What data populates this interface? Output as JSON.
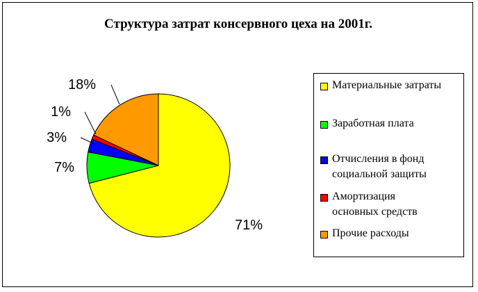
{
  "chart_data": {
    "type": "pie",
    "title": "Структура затрат консервного цеха на 2001г.",
    "categories": [
      "Материальные затраты",
      "Заработная плата",
      "Отчисления в фонд социальной защиты",
      "Амортизация основных средств",
      "Прочие расходы"
    ],
    "values": [
      71,
      7,
      3,
      1,
      18
    ],
    "labels": [
      "71%",
      "7%",
      "3%",
      "1%",
      "18%"
    ],
    "colors": [
      "#ffff00",
      "#00ff00",
      "#0000ff",
      "#ff0000",
      "#ff9900"
    ],
    "legend_position": "right",
    "start_angle": "12 o'clock",
    "direction": "clockwise"
  },
  "legend": {
    "items": [
      {
        "label_lines": [
          "Материальные затраты"
        ]
      },
      {
        "label_lines": [
          "Заработная плата"
        ]
      },
      {
        "label_lines": [
          "Отчисления в фонд",
          "социальной защиты"
        ]
      },
      {
        "label_lines": [
          "Амортизация",
          "основных средств"
        ]
      },
      {
        "label_lines": [
          "Прочие расходы"
        ]
      }
    ]
  }
}
